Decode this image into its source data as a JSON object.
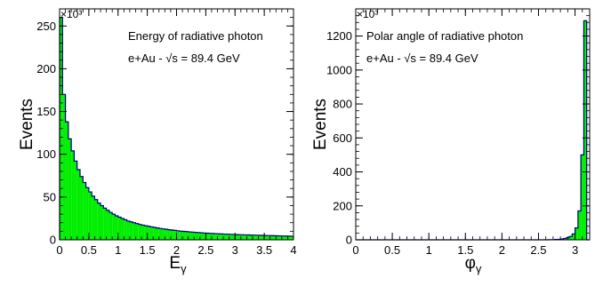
{
  "chart_data": [
    {
      "type": "histogram",
      "title": "Energy of radiative photon",
      "annotation": "e+Au - √s = 89.4 GeV",
      "xlabel": "E_γ",
      "ylabel": "Events",
      "y_multiplier": "×10³",
      "xlim": [
        0,
        4
      ],
      "ylim": [
        0,
        270
      ],
      "x_ticks": [
        "0",
        "0.5",
        "1",
        "1.5",
        "2",
        "2.5",
        "3",
        "3.5",
        "4"
      ],
      "y_ticks": [
        "0",
        "50",
        "100",
        "150",
        "200",
        "250"
      ],
      "x_tick_values": [
        0,
        0.5,
        1,
        1.5,
        2,
        2.5,
        3,
        3.5,
        4
      ],
      "y_tick_values": [
        0,
        50,
        100,
        150,
        200,
        250
      ],
      "bin_width": 0.05,
      "bin_start": 0,
      "values": [
        260,
        170,
        138,
        118,
        104,
        92,
        82,
        74,
        67,
        61,
        56,
        51,
        47,
        43,
        40,
        37,
        34.5,
        32,
        30,
        28,
        26.5,
        25,
        23.5,
        22,
        21,
        20,
        19,
        18,
        17.2,
        16.5,
        15.8,
        15.1,
        14.5,
        13.9,
        13.3,
        12.8,
        12.3,
        11.8,
        11.4,
        11,
        10.6,
        10.2,
        9.9,
        9.6,
        9.3,
        9,
        8.7,
        8.5,
        8.2,
        8,
        7.8,
        7.6,
        7.4,
        7.2,
        7,
        6.9,
        6.7,
        6.6,
        6.4,
        6.3,
        6.1,
        6,
        5.9,
        5.8,
        5.7,
        5.6,
        5.5,
        5.4,
        5.3,
        5.2,
        5.1,
        5,
        4.9,
        4.8,
        4.7,
        4.6,
        4.5,
        4.4,
        4.3,
        4.2
      ],
      "fill_color": "#00ee00",
      "line_color": "#000080"
    },
    {
      "type": "histogram",
      "title": "Polar angle of radiative photon",
      "annotation": "e+Au - √s = 89.4 GeV",
      "xlabel": "φ_γ",
      "ylabel": "Events",
      "y_multiplier": "×10³",
      "xlim": [
        0,
        3.2
      ],
      "ylim": [
        0,
        1360
      ],
      "x_ticks": [
        "0",
        "0.5",
        "1",
        "1.5",
        "2",
        "2.5",
        "3"
      ],
      "y_ticks": [
        "0",
        "200",
        "400",
        "600",
        "800",
        "1000",
        "1200"
      ],
      "x_tick_values": [
        0,
        0.5,
        1,
        1.5,
        2,
        2.5,
        3
      ],
      "y_tick_values": [
        0,
        200,
        400,
        600,
        800,
        1000,
        1200
      ],
      "bin_width": 0.04,
      "bin_start": 0,
      "values": [
        0,
        0,
        0,
        0,
        0,
        0,
        0,
        0,
        0,
        0,
        0,
        0,
        0,
        0,
        0,
        0,
        0,
        0,
        0,
        0,
        0,
        0,
        0,
        0,
        0,
        0,
        0,
        0,
        0,
        0,
        0,
        0,
        0,
        0,
        0,
        0,
        0,
        0,
        0,
        0,
        0,
        0,
        0,
        0,
        0,
        0,
        0,
        0,
        0,
        0,
        0,
        0,
        0,
        0,
        0,
        0,
        0,
        0,
        0,
        0,
        0,
        0,
        0,
        0,
        0,
        0,
        0.5,
        1,
        2,
        3,
        5,
        8,
        12,
        20,
        35,
        70,
        170,
        500,
        1290,
        0
      ],
      "fill_color": "#00ee00",
      "line_color": "#000080"
    }
  ]
}
